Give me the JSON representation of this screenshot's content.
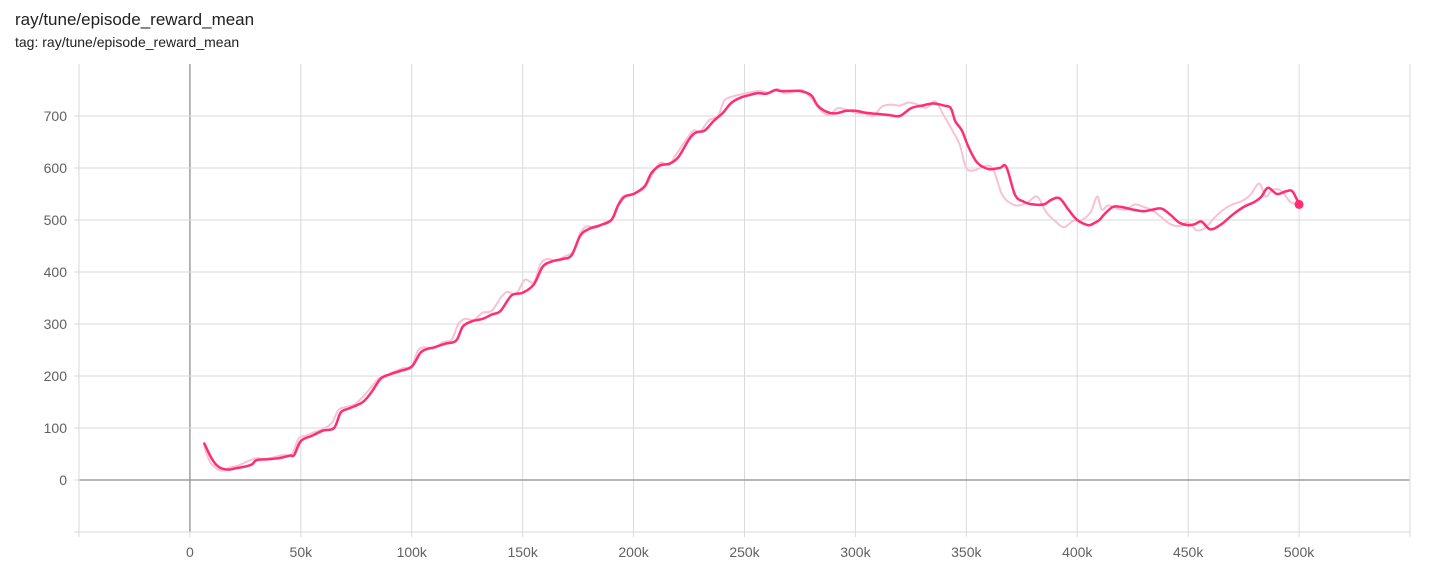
{
  "card": {
    "title": "ray/tune/episode_reward_mean",
    "tag": "tag: ray/tune/episode_reward_mean"
  },
  "colors": {
    "line": "#ff2d75",
    "raw_line": "#f6c2d6",
    "grid": "#dadada",
    "zero_axis": "#9e9e9e"
  },
  "chart_data": {
    "type": "line",
    "title": "ray/tune/episode_reward_mean",
    "xlabel": "",
    "ylabel": "",
    "xlim": [
      -50000,
      550000
    ],
    "ylim": [
      -100,
      800
    ],
    "xticks": [
      0,
      50000,
      100000,
      150000,
      200000,
      250000,
      300000,
      350000,
      400000,
      450000,
      500000
    ],
    "xtick_labels": [
      "0",
      "50k",
      "100k",
      "150k",
      "200k",
      "250k",
      "300k",
      "350k",
      "400k",
      "450k",
      "500k"
    ],
    "yticks": [
      0,
      100,
      200,
      300,
      400,
      500,
      600,
      700
    ],
    "ytick_labels": [
      "0",
      "100",
      "200",
      "300",
      "400",
      "500",
      "600",
      "700"
    ],
    "grid": true,
    "series": [
      {
        "name": "",
        "style": "smoothed",
        "x": [
          6500,
          10000,
          13000,
          17000,
          20000,
          25000,
          28000,
          30000,
          35000,
          40000,
          45000,
          47000,
          50000,
          55000,
          60000,
          65000,
          68000,
          72000,
          78000,
          82000,
          86000,
          90000,
          95000,
          100000,
          104000,
          107000,
          110000,
          115000,
          120000,
          123000,
          127000,
          132000,
          136000,
          140000,
          145000,
          150000,
          155000,
          159000,
          163000,
          168000,
          172000,
          176000,
          180000,
          185000,
          190000,
          193000,
          196000,
          200000,
          205000,
          208000,
          212000,
          216000,
          220000,
          225000,
          228000,
          232000,
          236000,
          240000,
          244000,
          248000,
          252000,
          256000,
          260000,
          264000,
          266000,
          270000,
          275000,
          280000,
          283000,
          287000,
          291000,
          296000,
          300000,
          305000,
          310000,
          315000,
          320000,
          325000,
          330000,
          335000,
          340000,
          343000,
          345000,
          348000,
          351000,
          355000,
          360000,
          365000,
          368000,
          372000,
          376000,
          380000,
          385000,
          388000,
          392000,
          396000,
          400000,
          405000,
          408000,
          410000,
          412000,
          416000,
          420000,
          425000,
          430000,
          434000,
          438000,
          442000,
          446000,
          450000,
          453000,
          456000,
          460000,
          465000,
          470000,
          475000,
          480000,
          483000,
          486000,
          490000,
          494000,
          497000,
          500000
        ],
        "values": [
          70,
          40,
          25,
          20,
          22,
          26,
          30,
          38,
          40,
          42,
          47,
          48,
          75,
          85,
          95,
          100,
          130,
          138,
          150,
          170,
          195,
          203,
          210,
          218,
          245,
          252,
          255,
          262,
          268,
          295,
          305,
          310,
          318,
          325,
          355,
          360,
          376,
          410,
          420,
          425,
          432,
          470,
          483,
          490,
          500,
          528,
          545,
          550,
          565,
          590,
          605,
          608,
          620,
          655,
          668,
          672,
          690,
          705,
          725,
          735,
          740,
          744,
          743,
          750,
          748,
          748,
          748,
          740,
          720,
          708,
          705,
          710,
          710,
          706,
          704,
          702,
          700,
          715,
          720,
          724,
          720,
          715,
          690,
          672,
          640,
          610,
          598,
          600,
          602,
          548,
          535,
          530,
          530,
          538,
          542,
          520,
          500,
          490,
          495,
          500,
          510,
          525,
          525,
          520,
          517,
          520,
          522,
          510,
          495,
          490,
          492,
          497,
          482,
          492,
          510,
          525,
          535,
          545,
          562,
          550,
          555,
          555,
          530
        ]
      },
      {
        "name": "",
        "style": "raw",
        "x": [
          6500,
          9000,
          12000,
          15000,
          18000,
          22000,
          26000,
          30000,
          34000,
          38000,
          42000,
          46000,
          49000,
          52000,
          56000,
          60000,
          64000,
          67000,
          70000,
          74000,
          78000,
          82000,
          85000,
          88000,
          92000,
          96000,
          100000,
          103000,
          106000,
          110000,
          114000,
          118000,
          121000,
          124000,
          128000,
          132000,
          136000,
          140000,
          143000,
          147000,
          151000,
          155000,
          158000,
          161000,
          165000,
          169000,
          173000,
          176000,
          179000,
          183000,
          187000,
          191000,
          194000,
          197000,
          201000,
          205000,
          208000,
          212000,
          216000,
          219000,
          223000,
          227000,
          230000,
          234000,
          238000,
          241000,
          245000,
          249000,
          253000,
          257000,
          261000,
          265000,
          268000,
          272000,
          276000,
          280000,
          284000,
          288000,
          292000,
          296000,
          300000,
          304000,
          308000,
          312000,
          316000,
          320000,
          324000,
          328000,
          332000,
          336000,
          340000,
          344000,
          347000,
          350000,
          354000,
          358000,
          362000,
          366000,
          370000,
          374000,
          378000,
          382000,
          386000,
          390000,
          394000,
          398000,
          402000,
          406000,
          409000,
          411000,
          414000,
          418000,
          422000,
          426000,
          430000,
          434000,
          438000,
          442000,
          446000,
          450000,
          454000,
          458000,
          462000,
          466000,
          470000,
          474000,
          478000,
          482000,
          485000,
          488000,
          492000,
          496000,
          500000
        ],
        "values": [
          65,
          35,
          22,
          18,
          24,
          28,
          36,
          42,
          40,
          44,
          48,
          50,
          80,
          85,
          92,
          98,
          110,
          135,
          140,
          145,
          160,
          180,
          195,
          198,
          208,
          215,
          220,
          250,
          255,
          253,
          265,
          270,
          300,
          310,
          308,
          322,
          325,
          350,
          362,
          358,
          385,
          380,
          415,
          425,
          422,
          430,
          440,
          475,
          488,
          485,
          495,
          505,
          540,
          548,
          552,
          562,
          585,
          610,
          606,
          625,
          650,
          672,
          670,
          692,
          700,
          730,
          738,
          742,
          746,
          748,
          745,
          752,
          744,
          746,
          750,
          735,
          712,
          702,
          715,
          712,
          706,
          705,
          700,
          718,
          722,
          720,
          726,
          722,
          716,
          728,
          700,
          670,
          645,
          600,
          596,
          604,
          598,
          550,
          532,
          528,
          535,
          545,
          515,
          498,
          486,
          498,
          500,
          515,
          545,
          520,
          528,
          522,
          520,
          530,
          525,
          518,
          505,
          492,
          488,
          495,
          480,
          486,
          505,
          520,
          530,
          536,
          548,
          570,
          545,
          558,
          556,
          535,
          530
        ]
      }
    ],
    "last_point": {
      "x": 500000,
      "y": 530
    }
  }
}
